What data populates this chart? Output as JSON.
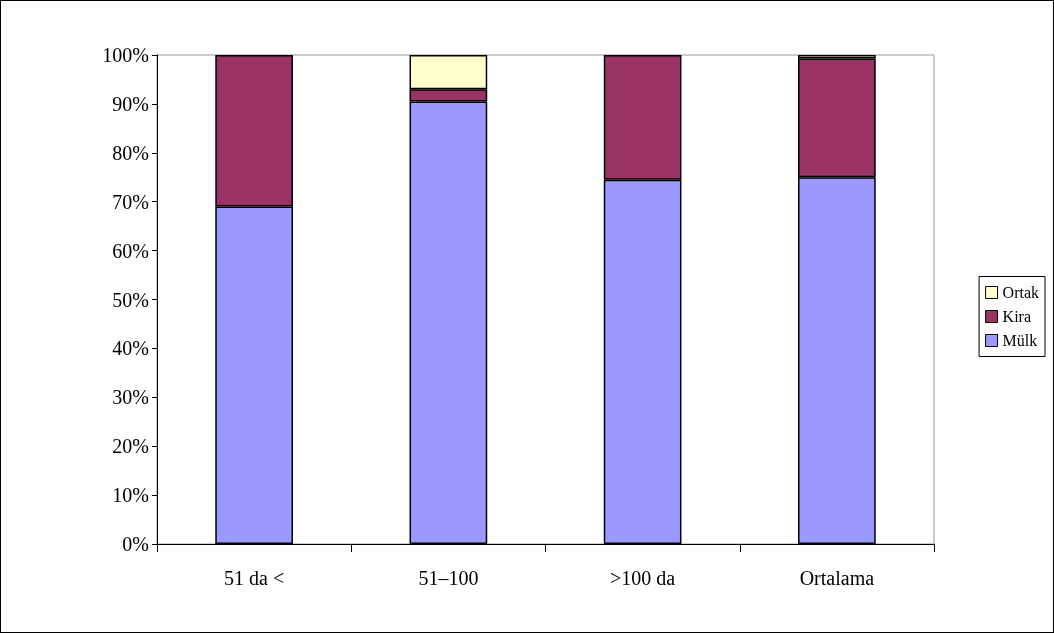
{
  "chart_data": {
    "type": "bar",
    "stacked": true,
    "categories": [
      "51 da <",
      "51–100",
      ">100 da",
      "Ortalama"
    ],
    "series": [
      {
        "name": "Mülk",
        "color": "#9999ff",
        "values": [
          69,
          90.5,
          74.5,
          75
        ]
      },
      {
        "name": "Kira",
        "color": "#993366",
        "values": [
          31,
          2.5,
          25.5,
          24.3
        ]
      },
      {
        "name": "Ortak",
        "color": "#ffffcc",
        "values": [
          null,
          7,
          null,
          0.7
        ]
      }
    ],
    "ylim": [
      0,
      100
    ],
    "yticks": [
      {
        "value": 0,
        "label": "0%"
      },
      {
        "value": 10,
        "label": "10%"
      },
      {
        "value": 20,
        "label": "20%"
      },
      {
        "value": 30,
        "label": "30%"
      },
      {
        "value": 40,
        "label": "40%"
      },
      {
        "value": 50,
        "label": "50%"
      },
      {
        "value": 60,
        "label": "60%"
      },
      {
        "value": 70,
        "label": "70%"
      },
      {
        "value": 80,
        "label": "80%"
      },
      {
        "value": 90,
        "label": "90%"
      },
      {
        "value": 100,
        "label": "100%"
      }
    ],
    "grid": false,
    "legend": "right"
  }
}
